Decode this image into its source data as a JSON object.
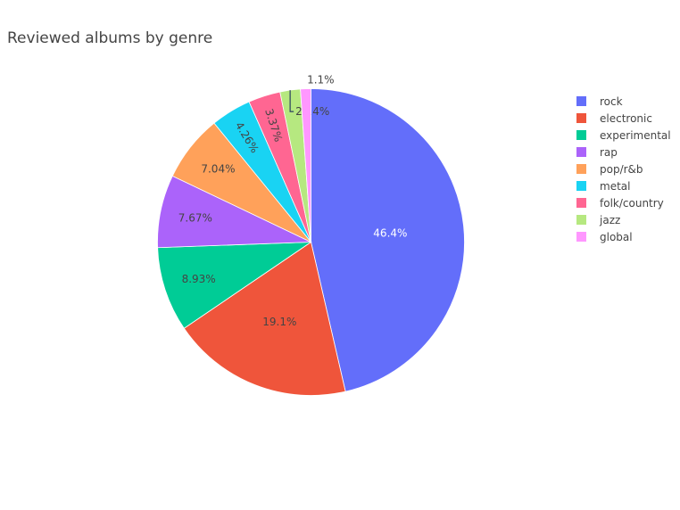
{
  "chart_data": {
    "type": "pie",
    "title": "Reviewed albums by genre",
    "legend_position": "right",
    "slices": [
      {
        "label": "rock",
        "percent": 46.4,
        "text": "46.4%",
        "color": "#636efa"
      },
      {
        "label": "electronic",
        "percent": 19.1,
        "text": "19.1%",
        "color": "#EF553B"
      },
      {
        "label": "experimental",
        "percent": 8.93,
        "text": "8.93%",
        "color": "#00cc96"
      },
      {
        "label": "rap",
        "percent": 7.67,
        "text": "7.67%",
        "color": "#ab63fa"
      },
      {
        "label": "pop/r&b",
        "percent": 7.04,
        "text": "7.04%",
        "color": "#FFA15A"
      },
      {
        "label": "metal",
        "percent": 4.26,
        "text": "4.26%",
        "color": "#19d3f3"
      },
      {
        "label": "folk/country",
        "percent": 3.37,
        "text": "3.37%",
        "color": "#FF6692"
      },
      {
        "label": "jazz",
        "percent": 2.14,
        "text": "2.14%",
        "color": "#B6E880"
      },
      {
        "label": "global",
        "percent": 1.1,
        "text": "1.1%",
        "color": "#FF97FF"
      }
    ]
  }
}
